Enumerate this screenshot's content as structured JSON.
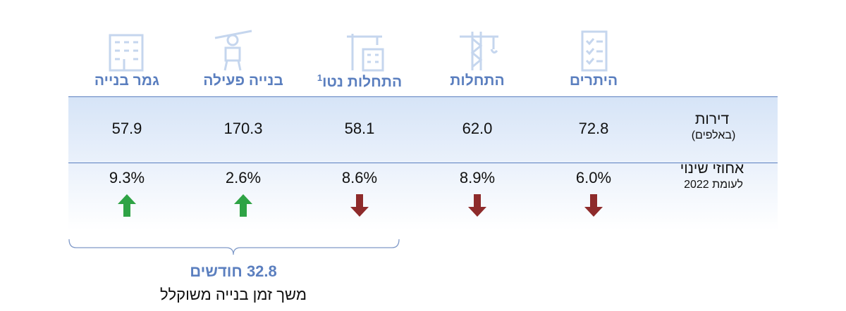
{
  "columns": [
    {
      "title": "היתרים"
    },
    {
      "title": "התחלות"
    },
    {
      "title": "התחלות נטו",
      "note": "1"
    },
    {
      "title": "בנייה פעילה"
    },
    {
      "title": "גמר בנייה"
    }
  ],
  "rows": [
    {
      "label": "דירות",
      "sublabel": "(באלפים)",
      "cells": [
        "72.8",
        "62.0",
        "58.1",
        "170.3",
        "57.9"
      ]
    },
    {
      "label": "אחוזי שינוי",
      "sublabel": "לעומת 2022",
      "cells": [
        "6.0%",
        "8.9%",
        "8.6%",
        "2.6%",
        "9.3%"
      ],
      "directions": [
        "down",
        "down",
        "down",
        "up",
        "up"
      ]
    }
  ],
  "bracket": {
    "value": "32.8 חודשים",
    "caption": "משך זמן בנייה משוקלל"
  }
}
